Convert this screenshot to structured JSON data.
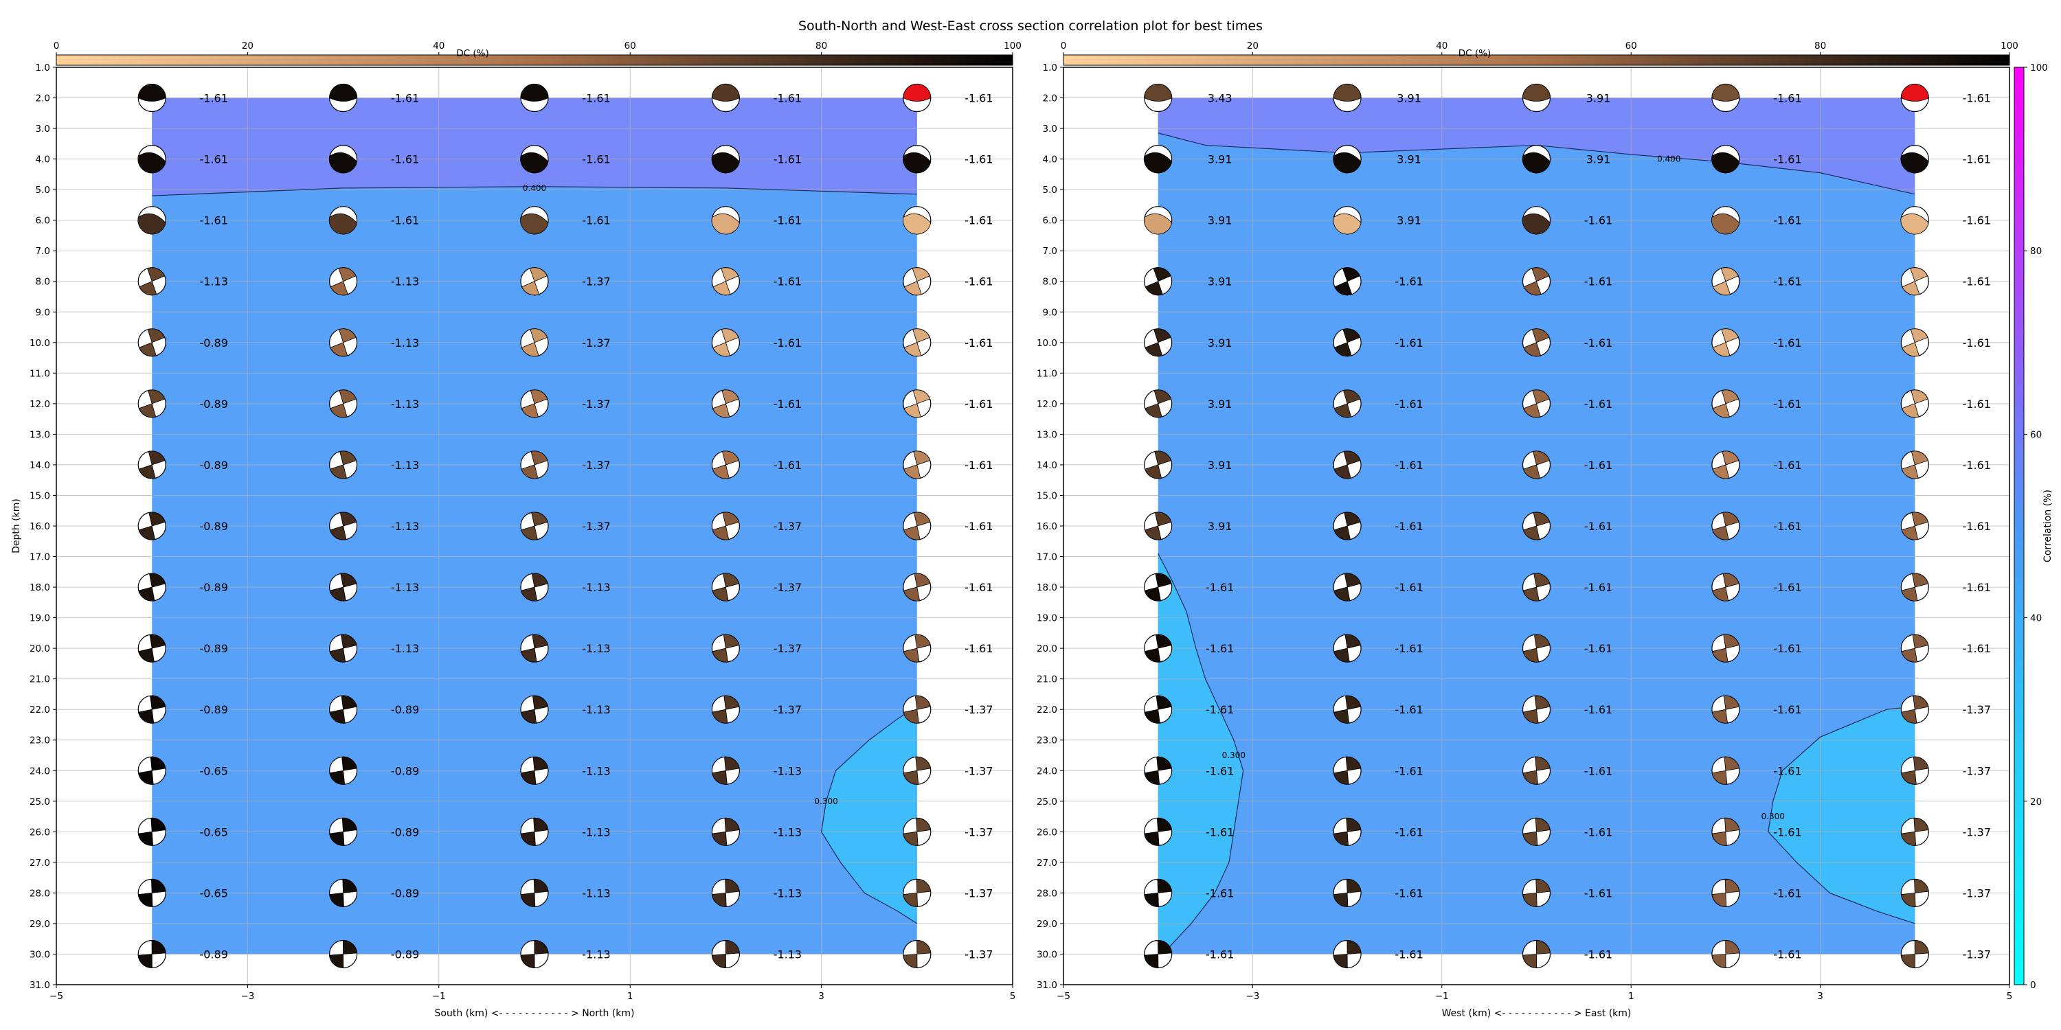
{
  "figure": {
    "title": "South-North and West-East cross section correlation plot for best times"
  },
  "colors": {
    "dc_start": "#ffd29b",
    "dc_mid": "#a9714a",
    "dc_end": "#000000",
    "corr_start": "#00ffff",
    "corr_mid": "#4c98f8",
    "corr_end": "#ff00ff",
    "best_beachball": "#e8121b",
    "grid": "#b0b0b0"
  },
  "chart_data": [
    {
      "type": "heatmap",
      "name": "south-north",
      "title": "",
      "xlabel": "South (km) <- - - - - - - - - - - > North (km)",
      "ylabel": "Depth (km)",
      "xlim": [
        -5,
        5
      ],
      "ylim": [
        31,
        1
      ],
      "x_ticks": [
        "−5",
        "−3",
        "−1",
        "1",
        "3",
        "5"
      ],
      "y_ticks": [
        "1.0",
        "2.0",
        "3.0",
        "4.0",
        "5.0",
        "6.0",
        "7.0",
        "8.0",
        "9.0",
        "10.0",
        "11.0",
        "12.0",
        "13.0",
        "14.0",
        "15.0",
        "16.0",
        "17.0",
        "18.0",
        "19.0",
        "20.0",
        "21.0",
        "22.0",
        "23.0",
        "24.0",
        "25.0",
        "26.0",
        "27.0",
        "28.0",
        "29.0",
        "30.0",
        "31.0"
      ],
      "grid": true,
      "colorbar_top": {
        "label": "DC (%)",
        "ticks": [
          "0",
          "20",
          "40",
          "60",
          "80",
          "100"
        ]
      },
      "x": [
        -4,
        -2,
        0,
        2,
        4
      ],
      "depths": [
        2,
        4,
        6,
        8,
        10,
        12,
        14,
        16,
        18,
        20,
        22,
        24,
        26,
        28,
        30
      ],
      "labels": [
        [
          "-1.61",
          "-1.61",
          "-1.61",
          "-1.61",
          "-1.61"
        ],
        [
          "-1.61",
          "-1.61",
          "-1.61",
          "-1.61",
          "-1.61"
        ],
        [
          "-1.61",
          "-1.61",
          "-1.61",
          "-1.61",
          "-1.61"
        ],
        [
          "-1.13",
          "-1.13",
          "-1.37",
          "-1.61",
          "-1.61"
        ],
        [
          "-0.89",
          "-1.13",
          "-1.37",
          "-1.61",
          "-1.61"
        ],
        [
          "-0.89",
          "-1.13",
          "-1.37",
          "-1.61",
          "-1.61"
        ],
        [
          "-0.89",
          "-1.13",
          "-1.37",
          "-1.61",
          "-1.61"
        ],
        [
          "-0.89",
          "-1.13",
          "-1.37",
          "-1.37",
          "-1.61"
        ],
        [
          "-0.89",
          "-1.13",
          "-1.13",
          "-1.37",
          "-1.61"
        ],
        [
          "-0.89",
          "-1.13",
          "-1.13",
          "-1.37",
          "-1.61"
        ],
        [
          "-0.89",
          "-0.89",
          "-1.13",
          "-1.37",
          "-1.37"
        ],
        [
          "-0.65",
          "-0.89",
          "-1.13",
          "-1.13",
          "-1.37"
        ],
        [
          "-0.65",
          "-0.89",
          "-1.13",
          "-1.13",
          "-1.37"
        ],
        [
          "-0.65",
          "-0.89",
          "-1.13",
          "-1.13",
          "-1.37"
        ],
        [
          "-0.89",
          "-0.89",
          "-1.13",
          "-1.13",
          "-1.37"
        ]
      ],
      "dc": [
        [
          95,
          95,
          95,
          75,
          95
        ],
        [
          95,
          95,
          95,
          95,
          95
        ],
        [
          80,
          75,
          70,
          20,
          15
        ],
        [
          70,
          55,
          30,
          20,
          20
        ],
        [
          70,
          55,
          30,
          20,
          20
        ],
        [
          70,
          60,
          50,
          40,
          20
        ],
        [
          80,
          70,
          60,
          50,
          40
        ],
        [
          85,
          80,
          70,
          60,
          55
        ],
        [
          92,
          85,
          80,
          70,
          60
        ],
        [
          92,
          85,
          80,
          70,
          60
        ],
        [
          95,
          92,
          85,
          75,
          65
        ],
        [
          98,
          95,
          88,
          80,
          70
        ],
        [
          98,
          95,
          88,
          80,
          70
        ],
        [
          98,
          95,
          88,
          80,
          70
        ],
        [
          95,
          92,
          88,
          80,
          70
        ]
      ],
      "contours": [
        {
          "level_label": "0.400",
          "points": [
            [
              -4,
              5.2
            ],
            [
              -2,
              4.95
            ],
            [
              0,
              4.9
            ],
            [
              2,
              4.95
            ],
            [
              4,
              5.15
            ]
          ],
          "label_at": [
            0,
            4.95
          ]
        },
        {
          "level_label": "0.300",
          "points": [
            [
              4,
              21.9
            ],
            [
              3.8,
              22.3
            ],
            [
              3.5,
              23.0
            ],
            [
              3.15,
              24.0
            ],
            [
              3.05,
              25.0
            ],
            [
              3.0,
              26.0
            ],
            [
              3.2,
              27.0
            ],
            [
              3.45,
              28.0
            ],
            [
              3.8,
              28.6
            ],
            [
              4,
              29.0
            ]
          ],
          "label_at": [
            3.05,
            25.0
          ]
        }
      ]
    },
    {
      "type": "heatmap",
      "name": "west-east",
      "title": "",
      "xlabel": "West (km) <- - - - - - - - - - - > East (km)",
      "ylabel": "",
      "xlim": [
        -5,
        5
      ],
      "ylim": [
        31,
        1
      ],
      "x_ticks": [
        "−5",
        "−3",
        "−1",
        "1",
        "3",
        "5"
      ],
      "y_ticks": [
        "1.0",
        "2.0",
        "3.0",
        "4.0",
        "5.0",
        "6.0",
        "7.0",
        "8.0",
        "9.0",
        "10.0",
        "11.0",
        "12.0",
        "13.0",
        "14.0",
        "15.0",
        "16.0",
        "17.0",
        "18.0",
        "19.0",
        "20.0",
        "21.0",
        "22.0",
        "23.0",
        "24.0",
        "25.0",
        "26.0",
        "27.0",
        "28.0",
        "29.0",
        "30.0",
        "31.0"
      ],
      "grid": true,
      "colorbar_top": {
        "label": "DC (%)",
        "ticks": [
          "0",
          "20",
          "40",
          "60",
          "80",
          "100"
        ]
      },
      "colorbar_right": {
        "label": "Correlation (%)",
        "ticks": [
          "0",
          "20",
          "40",
          "60",
          "80",
          "100"
        ]
      },
      "x": [
        -4,
        -2,
        0,
        2,
        4
      ],
      "depths": [
        2,
        4,
        6,
        8,
        10,
        12,
        14,
        16,
        18,
        20,
        22,
        24,
        26,
        28,
        30
      ],
      "labels": [
        [
          "3.43",
          "3.91",
          "3.91",
          "-1.61",
          "-1.61"
        ],
        [
          "3.91",
          "3.91",
          "3.91",
          "-1.61",
          "-1.61"
        ],
        [
          "3.91",
          "3.91",
          "-1.61",
          "-1.61",
          "-1.61"
        ],
        [
          "3.91",
          "-1.61",
          "-1.61",
          "-1.61",
          "-1.61"
        ],
        [
          "3.91",
          "-1.61",
          "-1.61",
          "-1.61",
          "-1.61"
        ],
        [
          "3.91",
          "-1.61",
          "-1.61",
          "-1.61",
          "-1.61"
        ],
        [
          "3.91",
          "-1.61",
          "-1.61",
          "-1.61",
          "-1.61"
        ],
        [
          "3.91",
          "-1.61",
          "-1.61",
          "-1.61",
          "-1.61"
        ],
        [
          "-1.61",
          "-1.61",
          "-1.61",
          "-1.61",
          "-1.61"
        ],
        [
          "-1.61",
          "-1.61",
          "-1.61",
          "-1.61",
          "-1.61"
        ],
        [
          "-1.61",
          "-1.61",
          "-1.61",
          "-1.61",
          "-1.37"
        ],
        [
          "-1.61",
          "-1.61",
          "-1.61",
          "-1.61",
          "-1.37"
        ],
        [
          "-1.61",
          "-1.61",
          "-1.61",
          "-1.61",
          "-1.37"
        ],
        [
          "-1.61",
          "-1.61",
          "-1.61",
          "-1.61",
          "-1.37"
        ],
        [
          "-1.61",
          "-1.61",
          "-1.61",
          "-1.61",
          "-1.37"
        ]
      ],
      "dc": [
        [
          70,
          70,
          70,
          65,
          95
        ],
        [
          95,
          95,
          95,
          95,
          95
        ],
        [
          25,
          15,
          80,
          55,
          15
        ],
        [
          90,
          95,
          60,
          20,
          20
        ],
        [
          85,
          90,
          60,
          20,
          20
        ],
        [
          75,
          75,
          55,
          40,
          25
        ],
        [
          75,
          80,
          60,
          45,
          40
        ],
        [
          75,
          85,
          70,
          60,
          55
        ],
        [
          95,
          85,
          70,
          60,
          60
        ],
        [
          95,
          85,
          70,
          60,
          60
        ],
        [
          95,
          85,
          70,
          60,
          65
        ],
        [
          95,
          85,
          70,
          60,
          70
        ],
        [
          95,
          85,
          70,
          60,
          70
        ],
        [
          95,
          85,
          70,
          60,
          70
        ],
        [
          95,
          85,
          70,
          60,
          70
        ]
      ],
      "contours": [
        {
          "level_label": "0.400",
          "points": [
            [
              -4,
              3.15
            ],
            [
              -3.5,
              3.55
            ],
            [
              -2,
              3.8
            ],
            [
              0,
              3.55
            ],
            [
              1,
              3.85
            ],
            [
              2,
              4.1
            ],
            [
              3,
              4.45
            ],
            [
              4,
              5.15
            ]
          ],
          "label_at": [
            1.4,
            4.0
          ]
        },
        {
          "level_label": "0.300",
          "points": [
            [
              -4,
              16.9
            ],
            [
              -3.85,
              17.8
            ],
            [
              -3.7,
              18.8
            ],
            [
              -3.6,
              20.0
            ],
            [
              -3.5,
              21.0
            ],
            [
              -3.35,
              22.0
            ],
            [
              -3.2,
              23.0
            ],
            [
              -3.1,
              24.0
            ],
            [
              -3.15,
              25.0
            ],
            [
              -3.2,
              26.0
            ],
            [
              -3.25,
              27.0
            ],
            [
              -3.4,
              28.0
            ],
            [
              -3.65,
              29.0
            ],
            [
              -3.95,
              30.0
            ],
            [
              -4,
              30.1
            ]
          ],
          "label_at": [
            -3.2,
            23.5
          ]
        },
        {
          "level_label": "0.300",
          "points": [
            [
              4,
              21.9
            ],
            [
              3.7,
              22.0
            ],
            [
              3.0,
              22.9
            ],
            [
              2.6,
              24.0
            ],
            [
              2.5,
              25.0
            ],
            [
              2.45,
              26.0
            ],
            [
              2.75,
              27.0
            ],
            [
              3.1,
              28.0
            ],
            [
              3.6,
              28.6
            ],
            [
              4,
              29.0
            ]
          ],
          "label_at": [
            2.5,
            25.5
          ]
        }
      ]
    }
  ]
}
